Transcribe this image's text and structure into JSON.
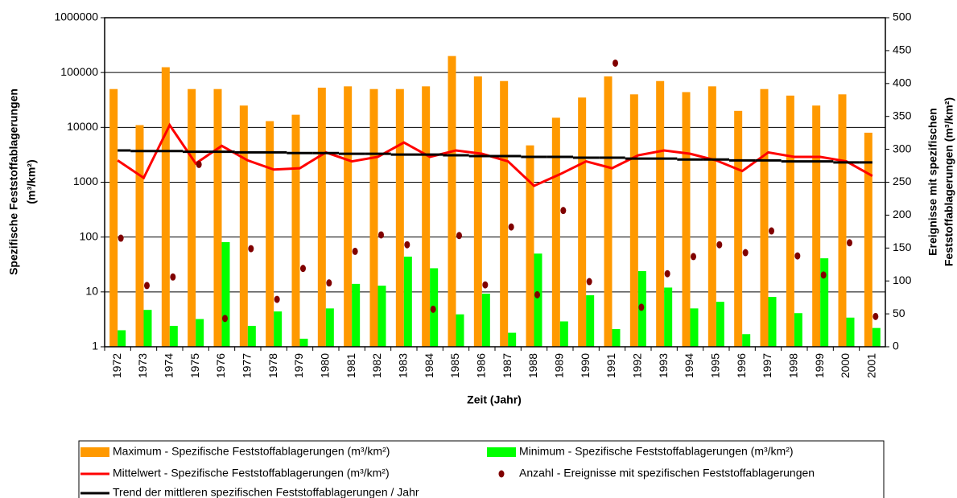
{
  "chart_data": {
    "type": "bar",
    "ylabel": [
      "Spezifische Feststoffablagerungen",
      "(m³/km²)"
    ],
    "y2label": [
      "Ereignisse mit spezifischen",
      "Feststoffablagerungen (m³/km²)"
    ],
    "xlabel": "Zeit (Jahr)",
    "categories": [
      "1972",
      "1973",
      "1974",
      "1975",
      "1976",
      "1977",
      "1978",
      "1979",
      "1980",
      "1981",
      "1982",
      "1983",
      "1984",
      "1985",
      "1986",
      "1987",
      "1988",
      "1989",
      "1990",
      "1991",
      "1992",
      "1993",
      "1994",
      "1995",
      "1996",
      "1997",
      "1998",
      "1999",
      "2000",
      "2001"
    ],
    "yscale": "log",
    "ylim": [
      1,
      1000000
    ],
    "yticks": [
      1,
      10,
      100,
      1000,
      10000,
      100000,
      1000000
    ],
    "y2lim": [
      0,
      500
    ],
    "y2ticks": [
      0,
      50,
      100,
      150,
      200,
      250,
      300,
      350,
      400,
      450,
      500
    ],
    "grid": true,
    "legend": "bottom",
    "series": [
      {
        "name": "Maximum - Spezifische Feststoffablagerungen (m³/km²)",
        "type": "bar",
        "color": "#FF9900",
        "values": [
          50000,
          11000,
          125000,
          50000,
          50000,
          25000,
          13000,
          17000,
          53000,
          56000,
          50000,
          50000,
          56000,
          200000,
          85000,
          70000,
          4700,
          15000,
          35000,
          85000,
          40000,
          70000,
          44000,
          56000,
          20000,
          50000,
          38000,
          25000,
          40000,
          8000
        ]
      },
      {
        "name": "Minimum - Spezifische Feststoffablagerungen (m³/km²)",
        "type": "bar",
        "color": "#00FF00",
        "values": [
          2,
          4.7,
          2.4,
          3.2,
          81,
          2.4,
          4.4,
          1.4,
          5,
          14,
          13,
          44,
          27,
          3.9,
          9.3,
          1.8,
          50,
          2.9,
          8.7,
          2.1,
          24,
          12,
          5,
          6.6,
          1.7,
          8.1,
          4.1,
          41,
          3.4,
          2.2
        ]
      },
      {
        "name": "Mittelwert - Spezifische Feststoffablagerungen (m³/km²)",
        "type": "line",
        "color": "#FF0000",
        "values": [
          2500,
          1200,
          11000,
          2200,
          4600,
          2500,
          1700,
          1800,
          3500,
          2400,
          2900,
          5300,
          2900,
          3800,
          3300,
          2400,
          860,
          1400,
          2400,
          1800,
          3100,
          3800,
          3300,
          2500,
          1600,
          3500,
          2900,
          2900,
          2400,
          1300
        ]
      },
      {
        "name": "Anzahl - Ereignisse mit spezifischen Feststoffablagerungen",
        "type": "scatter",
        "axis": "y2",
        "color": "#800000",
        "values": [
          165,
          93,
          106,
          277,
          43,
          149,
          72,
          119,
          97,
          145,
          170,
          155,
          57,
          169,
          94,
          182,
          79,
          207,
          99,
          431,
          60,
          111,
          137,
          155,
          143,
          176,
          138,
          109,
          158,
          46
        ]
      },
      {
        "name": "Trend der mittleren spezifischen Feststoffablagerungen / Jahr",
        "type": "step",
        "color": "#000000",
        "values": [
          3800,
          3700,
          3700,
          3600,
          3600,
          3500,
          3500,
          3400,
          3400,
          3300,
          3300,
          3200,
          3200,
          3100,
          3000,
          3000,
          2900,
          2900,
          2800,
          2800,
          2700,
          2700,
          2600,
          2600,
          2500,
          2500,
          2400,
          2400,
          2300,
          2300
        ]
      }
    ]
  }
}
